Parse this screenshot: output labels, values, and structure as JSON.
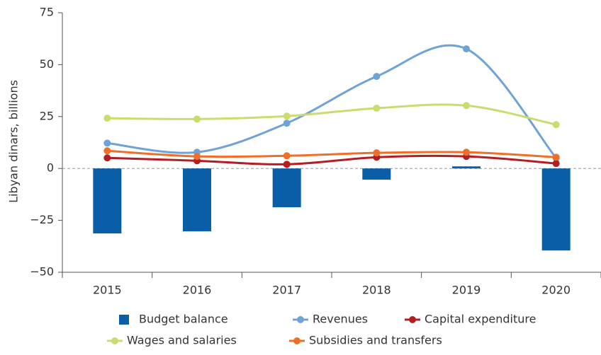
{
  "chart_data": {
    "type": "bar",
    "y_label": "Libyan dinars, billions",
    "categories": [
      "2015",
      "2016",
      "2017",
      "2018",
      "2019",
      "2020"
    ],
    "ylim": [
      -50,
      75
    ],
    "yticks": [
      {
        "value": -50,
        "label": "−50"
      },
      {
        "value": -25,
        "label": "−25"
      },
      0,
      25,
      50,
      75
    ],
    "series": [
      {
        "name": "Budget balance",
        "type": "bar",
        "color": "#0a5ea8",
        "values": [
          -31.3,
          -30.3,
          -18.7,
          -5.4,
          1.0,
          -39.5
        ]
      },
      {
        "name": "Revenues",
        "type": "line",
        "color": "#6fa3d8",
        "values": [
          12.2,
          7.8,
          21.8,
          44.3,
          57.6,
          5.0
        ]
      },
      {
        "name": "Capital expenditure",
        "type": "line",
        "color": "#b41e23",
        "values": [
          5.1,
          3.7,
          2.0,
          5.4,
          5.8,
          2.4
        ]
      },
      {
        "name": "Wages and salaries",
        "type": "line",
        "color": "#cbdc6e",
        "values": [
          24.2,
          23.8,
          25.2,
          29.0,
          30.3,
          21.1
        ]
      },
      {
        "name": "Subsidies and transfers",
        "type": "line",
        "color": "#ef6f2a",
        "values": [
          8.5,
          5.8,
          6.1,
          7.5,
          7.8,
          5.4
        ]
      }
    ]
  }
}
